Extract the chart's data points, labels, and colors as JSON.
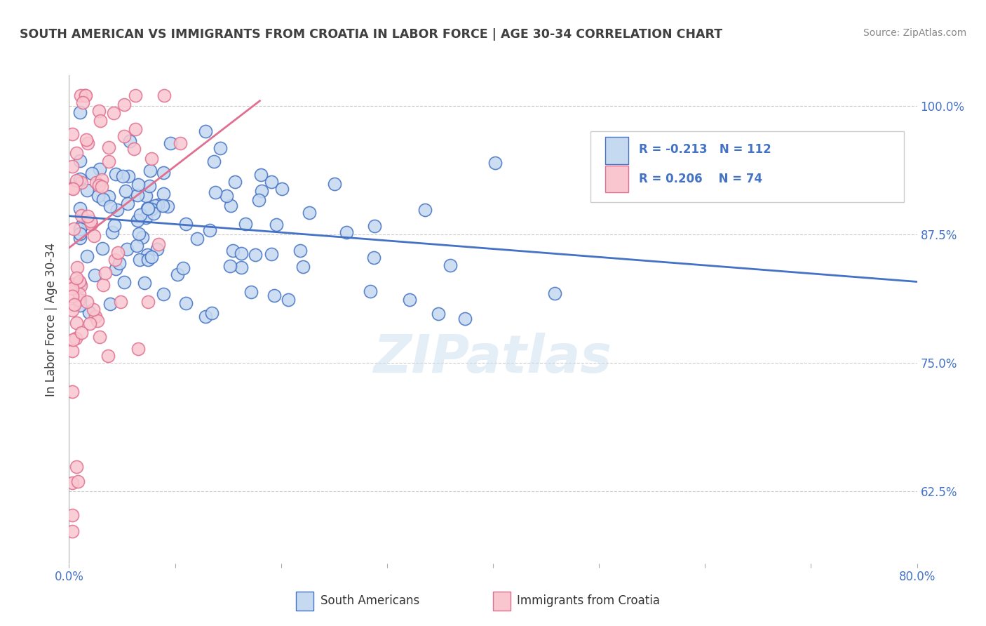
{
  "title": "SOUTH AMERICAN VS IMMIGRANTS FROM CROATIA IN LABOR FORCE | AGE 30-34 CORRELATION CHART",
  "source_text": "Source: ZipAtlas.com",
  "ylabel": "In Labor Force | Age 30-34",
  "xlim": [
    0.0,
    0.8
  ],
  "ylim": [
    0.555,
    1.03
  ],
  "yticks": [
    0.625,
    0.75,
    0.875,
    1.0
  ],
  "ytick_labels": [
    "62.5%",
    "75.0%",
    "87.5%",
    "100.0%"
  ],
  "xticks": [
    0.0,
    0.1,
    0.2,
    0.3,
    0.4,
    0.5,
    0.6,
    0.7,
    0.8
  ],
  "xtick_labels": [
    "0.0%",
    "",
    "",
    "",
    "",
    "",
    "",
    "",
    "80.0%"
  ],
  "blue_fill": "#c5d9f1",
  "pink_fill": "#f9c6cf",
  "blue_edge": "#4472c4",
  "pink_edge": "#e07090",
  "blue_line": "#4472c4",
  "pink_line": "#e07090",
  "title_color": "#404040",
  "label_color": "#4472c4",
  "source_color": "#888888",
  "r_blue": -0.213,
  "n_blue": 112,
  "r_pink": 0.206,
  "n_pink": 74,
  "legend_label_blue": "South Americans",
  "legend_label_pink": "Immigrants from Croatia",
  "watermark": "ZIPatlas",
  "blue_line_x0": 0.0,
  "blue_line_x1": 0.8,
  "blue_line_y0": 0.893,
  "blue_line_y1": 0.829,
  "pink_line_x0": 0.0,
  "pink_line_x1": 0.18,
  "pink_line_y0": 0.862,
  "pink_line_y1": 1.005
}
